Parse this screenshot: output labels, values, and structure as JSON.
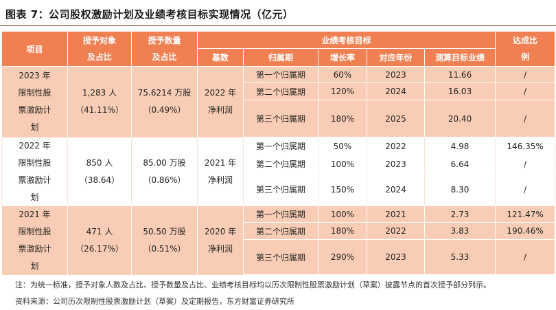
{
  "title": "图表 7：公司股权激励计划及业绩考核目标实现情况（亿元）",
  "headers": {
    "item": "项目",
    "grant_target": [
      "授予对象",
      "及占比"
    ],
    "grant_qty": [
      "授予数量",
      "及占比"
    ],
    "perf_target": "业绩考核目标",
    "achieve": [
      "达成比",
      "例"
    ],
    "base": "基数",
    "period": "归属期",
    "growth": "增长率",
    "year": "对应年份",
    "calc": "测算目标业绩"
  },
  "groups": [
    {
      "item": [
        "2023 年",
        "限制性股",
        "票激励计",
        "划"
      ],
      "grant_target": [
        "1,283 人",
        "（41.11%）"
      ],
      "grant_qty": [
        "75.6214 万股",
        "（0.49%）"
      ],
      "base": [
        "2022 年",
        "净利润"
      ],
      "rows": [
        {
          "period": "第一个归属期",
          "growth": "60%",
          "year": "2023",
          "calc": "11.66",
          "achieve": "/"
        },
        {
          "period": "第二个归属期",
          "growth": "120%",
          "year": "2024",
          "calc": "16.03",
          "achieve": "/"
        },
        {
          "period": "第三个归属期",
          "growth": "180%",
          "year": "2025",
          "calc": "20.40",
          "achieve": "/"
        }
      ]
    },
    {
      "item": [
        "2022 年",
        "限制性股",
        "票激励计",
        "划"
      ],
      "grant_target": [
        "850 人",
        "（38.64）"
      ],
      "grant_qty": [
        "85.00 万股",
        "（0.86%）"
      ],
      "base": [
        "2021 年",
        "净利润"
      ],
      "rows": [
        {
          "period": "第一个归属期",
          "growth": "50%",
          "year": "2022",
          "calc": "4.98",
          "achieve": "146.35%"
        },
        {
          "period": "第二个归属期",
          "growth": "100%",
          "year": "2023",
          "calc": "6.64",
          "achieve": "/"
        },
        {
          "period": "第三个归属期",
          "growth": "150%",
          "year": "2024",
          "calc": "8.30",
          "achieve": "/"
        }
      ]
    },
    {
      "item": [
        "2021 年",
        "限制性股",
        "票激励计",
        "划"
      ],
      "grant_target": [
        "471 人",
        "（26.17%）"
      ],
      "grant_qty": [
        "50.50 万股",
        "（0.51%）"
      ],
      "base": [
        "2020 年",
        "净利润"
      ],
      "rows": [
        {
          "period": "第一个归属期",
          "growth": "100%",
          "year": "2021",
          "calc": "2.73",
          "achieve": "121.47%"
        },
        {
          "period": "第二个归属期",
          "growth": "180%",
          "year": "2022",
          "calc": "3.83",
          "achieve": "190.46%"
        },
        {
          "period": "第三个归属期",
          "growth": "290%",
          "year": "2023",
          "calc": "5.33",
          "achieve": "/"
        }
      ]
    }
  ],
  "notes": {
    "note": "注：为统一标准，授予对象人数及占比、授予数量及占比、业绩考核目标均以历次限制性股票激励计划（草案）披露节点的首次授予部分列示。",
    "source": "资料来源：公司历次限制性股票激励计划（草案）及定期报告，东方财富证券研究所"
  },
  "colors": {
    "header": "#f07f52",
    "band": "#f9cdb5",
    "rule": "#7a3b1a"
  }
}
